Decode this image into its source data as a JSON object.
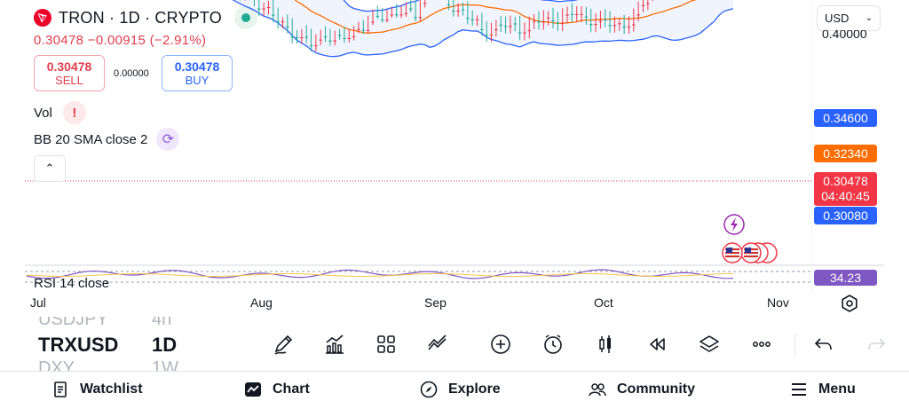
{
  "header": {
    "title": "TRON · 1D · CRYPTO",
    "price_line": "0.30478  −0.00915 (−2.91%)",
    "sell": {
      "price": "0.30478",
      "label": "SELL"
    },
    "buy": {
      "price": "0.30478",
      "label": "BUY"
    },
    "spread": "0.00000",
    "currency": "USD"
  },
  "indicators": {
    "vol": "Vol",
    "bb": "BB 20 SMA close 2",
    "rsi": "RSI 14 close"
  },
  "price_axis": {
    "top_cut": "0.40000",
    "upper": "0.34600",
    "basis": "0.32340",
    "last": "0.30478",
    "countdown": "04:40:45",
    "lower": "0.30080",
    "rsi": "34.23"
  },
  "x_axis": [
    "Jul",
    "Aug",
    "Sep",
    "Oct",
    "Nov"
  ],
  "symbols": {
    "prev": "USDJPY",
    "prev_tf": "4h",
    "current": "TRXUSD",
    "current_tf": "1D",
    "next": "DXY",
    "next_tf": "1W"
  },
  "nav": {
    "watchlist": "Watchlist",
    "chart": "Chart",
    "explore": "Explore",
    "community": "Community",
    "menu": "Menu"
  },
  "colors": {
    "up": "#22ab94",
    "down": "#f23645",
    "bb_band": "#2962ff",
    "bb_basis": "#ff6d00",
    "rsi": "#7e57c2"
  },
  "chart_data": {
    "type": "candlestick",
    "symbol": "TRXUSD",
    "timeframe": "1D",
    "x_ticks": [
      "Jul",
      "Aug",
      "Sep",
      "Oct",
      "Nov"
    ],
    "price_ticks": [
      "0.34600",
      "0.32340",
      "0.30478",
      "0.30080"
    ],
    "bollinger": {
      "upper": 0.346,
      "basis": 0.3234,
      "lower": 0.3008
    },
    "last_close": 0.30478,
    "rsi_value": 34.23
  }
}
